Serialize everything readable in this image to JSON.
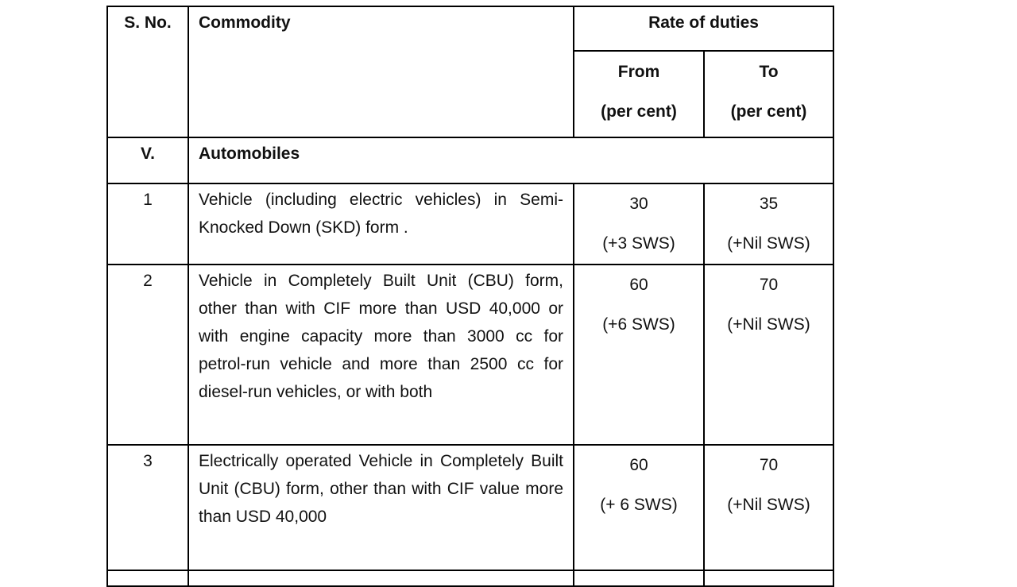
{
  "table": {
    "header": {
      "sno": "S. No.",
      "commodity": "Commodity",
      "rate": "Rate of duties",
      "from": [
        "From",
        "(per cent)"
      ],
      "to": [
        "To",
        "(per cent)"
      ]
    },
    "section": {
      "sno": "V.",
      "title": "Automobiles"
    },
    "rows": [
      {
        "sno": "1",
        "commodity": "Vehicle (including electric vehicles) in Semi-Knocked Down (SKD) form .",
        "from": [
          "30",
          "(+3 SWS)"
        ],
        "to": [
          "35",
          "(+Nil SWS)"
        ]
      },
      {
        "sno": "2",
        "commodity": "Vehicle in Completely Built Unit (CBU) form, other than with CIF more than USD 40,000 or with engine capacity more than 3000 cc for petrol-run vehicle and more than 2500 cc for diesel-run vehicles, or with both",
        "from": [
          "60",
          "(+6  SWS)"
        ],
        "to": [
          "70",
          "(+Nil SWS)"
        ]
      },
      {
        "sno": "3",
        "commodity": "Electrically operated Vehicle in Completely Built Unit (CBU) form, other than with CIF value more than USD 40,000",
        "from": [
          "60",
          "(+ 6 SWS)"
        ],
        "to": [
          "70",
          "(+Nil SWS)"
        ]
      }
    ]
  }
}
